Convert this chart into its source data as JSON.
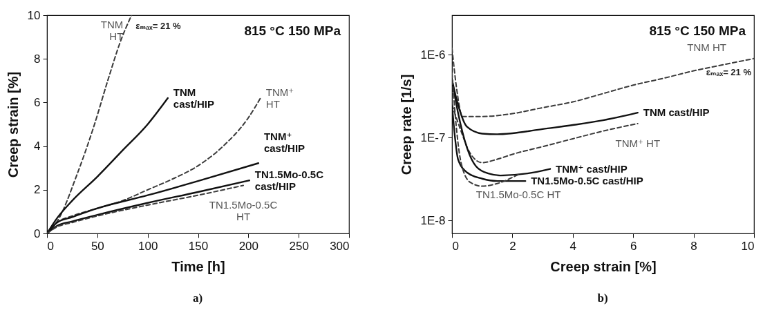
{
  "chart_data": [
    {
      "type": "line",
      "xlabel": "Time [h]",
      "ylabel": "Creep strain [%]",
      "xlim": [
        0,
        300
      ],
      "ylim": [
        0,
        10
      ],
      "xticks": [
        0,
        50,
        100,
        150,
        200,
        250,
        300
      ],
      "yticks": [
        0,
        2,
        4,
        6,
        8,
        10
      ],
      "grid": false,
      "annotations": [
        "815 °C  150 MPa",
        "a)",
        {
          "text": "εₘₐₓ= 21 %",
          "x": 84,
          "y": 10
        }
      ],
      "series": [
        {
          "name": "TNM HT",
          "color": "#3a3a3a",
          "line_style": "dashed",
          "x": [
            0,
            12,
            29,
            46.5,
            61,
            73,
            84
          ],
          "values": [
            0,
            0.7,
            2.6,
            4.9,
            7.1,
            8.8,
            10
          ]
        },
        {
          "name": "TNM cast/HIP",
          "color": "#111111",
          "line_style": "solid",
          "x": [
            0,
            10,
            25,
            50,
            75,
            100,
            120
          ],
          "values": [
            0,
            0.7,
            1.5,
            2.6,
            3.8,
            5.0,
            6.2
          ]
        },
        {
          "name": "TNM⁺ HT",
          "color": "#3a3a3a",
          "line_style": "dashed",
          "x": [
            0,
            10,
            25,
            50,
            75,
            100,
            125,
            150,
            175,
            200,
            212
          ],
          "values": [
            0,
            0.5,
            0.8,
            1.15,
            1.5,
            2.0,
            2.5,
            3.1,
            4.0,
            5.3,
            6.2
          ]
        },
        {
          "name": "TNM⁺ cast/HIP",
          "color": "#111111",
          "line_style": "solid",
          "x": [
            0,
            10,
            25,
            50,
            100,
            150,
            210
          ],
          "values": [
            0,
            0.5,
            0.75,
            1.15,
            1.75,
            2.4,
            3.22
          ]
        },
        {
          "name": "TN1.5Mo-0.5C cast/HIP",
          "color": "#111111",
          "line_style": "solid",
          "x": [
            0,
            10,
            25,
            50,
            100,
            150,
            201
          ],
          "values": [
            0,
            0.35,
            0.55,
            0.85,
            1.4,
            1.9,
            2.43
          ]
        },
        {
          "name": "TN1.5Mo-0.5C HT",
          "color": "#3a3a3a",
          "line_style": "dashed",
          "x": [
            0,
            10,
            25,
            50,
            100,
            150,
            195
          ],
          "values": [
            0,
            0.3,
            0.5,
            0.8,
            1.3,
            1.75,
            2.2
          ]
        }
      ]
    },
    {
      "type": "line",
      "xlabel": "Creep strain [%]",
      "ylabel": "Creep rate [1/s]",
      "log": true,
      "xlim": [
        0,
        10
      ],
      "ylim": [
        7e-09,
        3e-06
      ],
      "xticks": [
        0,
        2,
        4,
        6,
        8,
        10
      ],
      "yticks": [
        {
          "value": 1e-08,
          "label": "1E-8"
        },
        {
          "value": 1e-07,
          "label": "1E-7"
        },
        {
          "value": 1e-06,
          "label": "1E-6"
        }
      ],
      "grid": false,
      "annotations": [
        "815 °C  150 MPa",
        "b)",
        {
          "text": "εₘₐₓ= 21 %",
          "x": 10,
          "y": 9e-07
        }
      ],
      "series": [
        {
          "name": "TNM HT",
          "color": "#3a3a3a",
          "line_style": "dashed",
          "x": [
            0,
            0.15,
            0.35,
            1,
            2,
            3,
            4,
            5,
            6,
            7,
            8,
            9,
            10
          ],
          "values": [
            1.2e-06,
            4e-07,
            1.8e-07,
            1.8e-07,
            1.95e-07,
            2.3e-07,
            2.7e-07,
            3.4e-07,
            4.3e-07,
            5.2e-07,
            6.4e-07,
            7.6e-07,
            9e-07
          ]
        },
        {
          "name": "TNM cast/HIP",
          "color": "#111111",
          "line_style": "solid",
          "x": [
            0,
            0.2,
            0.5,
            1,
            1.5,
            2,
            3,
            4,
            5,
            6.15
          ],
          "values": [
            5e-07,
            2.5e-07,
            1.35e-07,
            1.12e-07,
            1.1e-07,
            1.13e-07,
            1.27e-07,
            1.42e-07,
            1.62e-07,
            2e-07
          ]
        },
        {
          "name": "TNM⁺ HT",
          "color": "#3a3a3a",
          "line_style": "dashed",
          "x": [
            0,
            0.3,
            0.6,
            1,
            1.5,
            2,
            3,
            4,
            5,
            6.15
          ],
          "values": [
            2.5e-07,
            1.2e-07,
            6.5e-08,
            5e-08,
            5.5e-08,
            6.3e-08,
            7.8e-08,
            9.7e-08,
            1.2e-07,
            1.48e-07
          ]
        },
        {
          "name": "TNM⁺ cast/HIP",
          "color": "#111111",
          "line_style": "solid",
          "x": [
            0,
            0.2,
            0.5,
            0.8,
            1.2,
            1.6,
            2.5,
            3.25
          ],
          "values": [
            5e-07,
            2e-07,
            7.5e-08,
            4.5e-08,
            3.7e-08,
            3.5e-08,
            3.7e-08,
            4.2e-08
          ]
        },
        {
          "name": "TN1.5Mo-0.5C cast/HIP",
          "color": "#111111",
          "line_style": "solid",
          "x": [
            0,
            0.1,
            0.2,
            0.5,
            1,
            1.5,
            2.43
          ],
          "values": [
            2.5e-07,
            1e-07,
            5.5e-08,
            3.8e-08,
            3.2e-08,
            3e-08,
            3e-08
          ]
        },
        {
          "name": "TN1.5Mo-0.5C HT",
          "color": "#3a3a3a",
          "line_style": "dashed",
          "x": [
            0,
            0.1,
            0.3,
            0.6,
            1,
            1.5,
            2.2
          ],
          "values": [
            6e-07,
            2e-07,
            5e-08,
            2.9e-08,
            2.6e-08,
            2.8e-08,
            3.6e-08
          ]
        }
      ]
    }
  ]
}
